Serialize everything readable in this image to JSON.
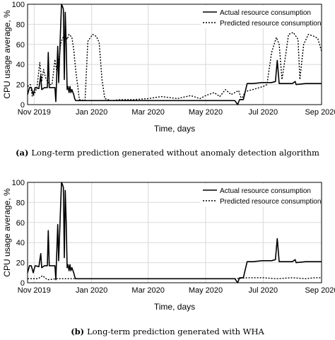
{
  "chart_data": [
    {
      "type": "line",
      "caption_label": "(a)",
      "caption_text": "Long-term prediction generated without anomaly detection algorithm",
      "xlabel": "Time, days",
      "ylabel": "CPU usage average, %",
      "xlim": [
        "2019-10-25",
        "2020-09-01"
      ],
      "ylim": [
        0,
        100
      ],
      "yticks": [
        0,
        20,
        40,
        60,
        80,
        100
      ],
      "xticks": [
        {
          "date": "2019-11-01",
          "label": "Nov 2019"
        },
        {
          "date": "2020-01-01",
          "label": "Jan 2020"
        },
        {
          "date": "2020-03-01",
          "label": "Mar 2020"
        },
        {
          "date": "2020-05-01",
          "label": "May 2020"
        },
        {
          "date": "2020-07-01",
          "label": "Jul 2020"
        },
        {
          "date": "2020-09-01",
          "label": "Sep 2020"
        }
      ],
      "grid": true,
      "legend_position": "top-right",
      "series": [
        {
          "name": "Actual resource consumption",
          "style": "solid",
          "points": [
            [
              "2019-10-25",
              10
            ],
            [
              "2019-10-27",
              17
            ],
            [
              "2019-10-29",
              17
            ],
            [
              "2019-10-31",
              10
            ],
            [
              "2019-11-02",
              17
            ],
            [
              "2019-11-06",
              16
            ],
            [
              "2019-11-08",
              29
            ],
            [
              "2019-11-09",
              15
            ],
            [
              "2019-11-12",
              17
            ],
            [
              "2019-11-15",
              17
            ],
            [
              "2019-11-16",
              52
            ],
            [
              "2019-11-17",
              17
            ],
            [
              "2019-11-20",
              17
            ],
            [
              "2019-11-23",
              17
            ],
            [
              "2019-11-24",
              3
            ],
            [
              "2019-11-26",
              58
            ],
            [
              "2019-11-27",
              22
            ],
            [
              "2019-11-29",
              75
            ],
            [
              "2019-11-30",
              100
            ],
            [
              "2019-12-01",
              98
            ],
            [
              "2019-12-02",
              95
            ],
            [
              "2019-12-03",
              25
            ],
            [
              "2019-12-04",
              92
            ],
            [
              "2019-12-05",
              60
            ],
            [
              "2019-12-06",
              15
            ],
            [
              "2019-12-07",
              18
            ],
            [
              "2019-12-08",
              12
            ],
            [
              "2019-12-09",
              18
            ],
            [
              "2019-12-10",
              12
            ],
            [
              "2019-12-11",
              15
            ],
            [
              "2019-12-13",
              10
            ],
            [
              "2019-12-14",
              6
            ],
            [
              "2019-12-15",
              4
            ],
            [
              "2019-12-20",
              4
            ],
            [
              "2019-12-31",
              4
            ],
            [
              "2020-01-31",
              4
            ],
            [
              "2020-03-01",
              4
            ],
            [
              "2020-04-01",
              4
            ],
            [
              "2020-05-01",
              4
            ],
            [
              "2020-06-01",
              4
            ],
            [
              "2020-06-04",
              0
            ],
            [
              "2020-06-06",
              5
            ],
            [
              "2020-06-10",
              5
            ],
            [
              "2020-06-14",
              21
            ],
            [
              "2020-06-20",
              21
            ],
            [
              "2020-06-30",
              22
            ],
            [
              "2020-07-10",
              22
            ],
            [
              "2020-07-14",
              23
            ],
            [
              "2020-07-16",
              44
            ],
            [
              "2020-07-18",
              21
            ],
            [
              "2020-07-25",
              21
            ],
            [
              "2020-08-01",
              21
            ],
            [
              "2020-08-04",
              23
            ],
            [
              "2020-08-05",
              20
            ],
            [
              "2020-08-15",
              21
            ],
            [
              "2020-08-25",
              21
            ],
            [
              "2020-09-01",
              21
            ]
          ]
        },
        {
          "name": "Predicted resource consumption",
          "style": "dotted",
          "points": [
            [
              "2019-10-25",
              18
            ],
            [
              "2019-10-28",
              20
            ],
            [
              "2019-10-30",
              8
            ],
            [
              "2019-11-01",
              10
            ],
            [
              "2019-11-04",
              17
            ],
            [
              "2019-11-07",
              42
            ],
            [
              "2019-11-09",
              23
            ],
            [
              "2019-11-11",
              35
            ],
            [
              "2019-11-13",
              27
            ],
            [
              "2019-11-16",
              22
            ],
            [
              "2019-11-18",
              20
            ],
            [
              "2019-11-20",
              20
            ],
            [
              "2019-11-23",
              45
            ],
            [
              "2019-11-25",
              33
            ],
            [
              "2019-11-27",
              40
            ],
            [
              "2019-11-29",
              60
            ],
            [
              "2019-12-01",
              66
            ],
            [
              "2019-12-04",
              70
            ],
            [
              "2019-12-06",
              65
            ],
            [
              "2019-12-08",
              70
            ],
            [
              "2019-12-11",
              67
            ],
            [
              "2019-12-13",
              55
            ],
            [
              "2019-12-15",
              35
            ],
            [
              "2019-12-17",
              20
            ],
            [
              "2019-12-19",
              5
            ],
            [
              "2019-12-25",
              4
            ],
            [
              "2019-12-28",
              63
            ],
            [
              "2020-01-02",
              70
            ],
            [
              "2020-01-06",
              68
            ],
            [
              "2020-01-09",
              62
            ],
            [
              "2020-01-12",
              25
            ],
            [
              "2020-01-15",
              6
            ],
            [
              "2020-01-22",
              4
            ],
            [
              "2020-02-01",
              5
            ],
            [
              "2020-02-15",
              5
            ],
            [
              "2020-03-01",
              6
            ],
            [
              "2020-03-15",
              8
            ],
            [
              "2020-04-01",
              6
            ],
            [
              "2020-04-15",
              9
            ],
            [
              "2020-04-25",
              6
            ],
            [
              "2020-05-01",
              9
            ],
            [
              "2020-05-10",
              12
            ],
            [
              "2020-05-16",
              8
            ],
            [
              "2020-05-22",
              15
            ],
            [
              "2020-05-28",
              10
            ],
            [
              "2020-06-05",
              14
            ],
            [
              "2020-06-08",
              5
            ],
            [
              "2020-06-12",
              13
            ],
            [
              "2020-06-20",
              15
            ],
            [
              "2020-07-01",
              18
            ],
            [
              "2020-07-05",
              20
            ],
            [
              "2020-07-10",
              52
            ],
            [
              "2020-07-15",
              67
            ],
            [
              "2020-07-18",
              60
            ],
            [
              "2020-07-21",
              25
            ],
            [
              "2020-07-25",
              50
            ],
            [
              "2020-07-28",
              70
            ],
            [
              "2020-08-02",
              72
            ],
            [
              "2020-08-07",
              65
            ],
            [
              "2020-08-09",
              25
            ],
            [
              "2020-08-13",
              60
            ],
            [
              "2020-08-18",
              70
            ],
            [
              "2020-08-24",
              68
            ],
            [
              "2020-08-28",
              66
            ],
            [
              "2020-09-01",
              53
            ]
          ]
        }
      ]
    },
    {
      "type": "line",
      "caption_label": "(b)",
      "caption_text": "Long-term prediction generated with WHA",
      "xlabel": "Time, days",
      "ylabel": "CPU usage average, %",
      "xlim": [
        "2019-10-25",
        "2020-09-01"
      ],
      "ylim": [
        0,
        100
      ],
      "yticks": [
        0,
        20,
        40,
        60,
        80,
        100
      ],
      "xticks": [
        {
          "date": "2019-11-01",
          "label": "Nov 2019"
        },
        {
          "date": "2020-01-01",
          "label": "Jan 2020"
        },
        {
          "date": "2020-03-01",
          "label": "Mar 2020"
        },
        {
          "date": "2020-05-01",
          "label": "May 2020"
        },
        {
          "date": "2020-07-01",
          "label": "Jul 2020"
        },
        {
          "date": "2020-09-01",
          "label": "Sep 2020"
        }
      ],
      "grid": true,
      "legend_position": "top-right",
      "series": [
        {
          "name": "Actual resource consumption",
          "style": "solid",
          "points": [
            [
              "2019-10-25",
              10
            ],
            [
              "2019-10-27",
              17
            ],
            [
              "2019-10-29",
              17
            ],
            [
              "2019-10-31",
              10
            ],
            [
              "2019-11-02",
              17
            ],
            [
              "2019-11-06",
              16
            ],
            [
              "2019-11-08",
              29
            ],
            [
              "2019-11-09",
              15
            ],
            [
              "2019-11-12",
              17
            ],
            [
              "2019-11-15",
              17
            ],
            [
              "2019-11-16",
              52
            ],
            [
              "2019-11-17",
              17
            ],
            [
              "2019-11-20",
              17
            ],
            [
              "2019-11-23",
              17
            ],
            [
              "2019-11-24",
              3
            ],
            [
              "2019-11-26",
              58
            ],
            [
              "2019-11-27",
              22
            ],
            [
              "2019-11-29",
              75
            ],
            [
              "2019-11-30",
              100
            ],
            [
              "2019-12-01",
              98
            ],
            [
              "2019-12-02",
              95
            ],
            [
              "2019-12-03",
              25
            ],
            [
              "2019-12-04",
              92
            ],
            [
              "2019-12-05",
              60
            ],
            [
              "2019-12-06",
              15
            ],
            [
              "2019-12-07",
              18
            ],
            [
              "2019-12-08",
              12
            ],
            [
              "2019-12-09",
              18
            ],
            [
              "2019-12-10",
              12
            ],
            [
              "2019-12-11",
              15
            ],
            [
              "2019-12-13",
              10
            ],
            [
              "2019-12-14",
              6
            ],
            [
              "2019-12-15",
              4
            ],
            [
              "2019-12-20",
              4
            ],
            [
              "2019-12-31",
              4
            ],
            [
              "2020-01-31",
              4
            ],
            [
              "2020-03-01",
              4
            ],
            [
              "2020-04-01",
              4
            ],
            [
              "2020-05-01",
              4
            ],
            [
              "2020-06-01",
              4
            ],
            [
              "2020-06-04",
              0
            ],
            [
              "2020-06-06",
              5
            ],
            [
              "2020-06-10",
              5
            ],
            [
              "2020-06-14",
              21
            ],
            [
              "2020-06-20",
              21
            ],
            [
              "2020-06-30",
              22
            ],
            [
              "2020-07-10",
              22
            ],
            [
              "2020-07-14",
              23
            ],
            [
              "2020-07-16",
              44
            ],
            [
              "2020-07-18",
              21
            ],
            [
              "2020-07-25",
              21
            ],
            [
              "2020-08-01",
              21
            ],
            [
              "2020-08-04",
              23
            ],
            [
              "2020-08-05",
              20
            ],
            [
              "2020-08-15",
              21
            ],
            [
              "2020-08-25",
              21
            ],
            [
              "2020-09-01",
              21
            ]
          ]
        },
        {
          "name": "Predicted resource consumption",
          "style": "dotted",
          "points": [
            [
              "2019-10-25",
              4
            ],
            [
              "2019-11-05",
              4
            ],
            [
              "2019-11-10",
              7
            ],
            [
              "2019-11-15",
              3
            ],
            [
              "2019-11-25",
              4
            ],
            [
              "2019-12-05",
              4
            ],
            [
              "2019-12-15",
              4
            ],
            [
              "2020-01-01",
              4
            ],
            [
              "2020-02-01",
              4
            ],
            [
              "2020-03-01",
              4
            ],
            [
              "2020-04-01",
              4
            ],
            [
              "2020-05-01",
              4
            ],
            [
              "2020-06-01",
              4
            ],
            [
              "2020-06-15",
              5
            ],
            [
              "2020-07-01",
              5
            ],
            [
              "2020-07-15",
              4
            ],
            [
              "2020-08-01",
              5
            ],
            [
              "2020-08-15",
              4
            ],
            [
              "2020-08-25",
              5
            ],
            [
              "2020-09-01",
              5
            ]
          ]
        }
      ]
    }
  ]
}
